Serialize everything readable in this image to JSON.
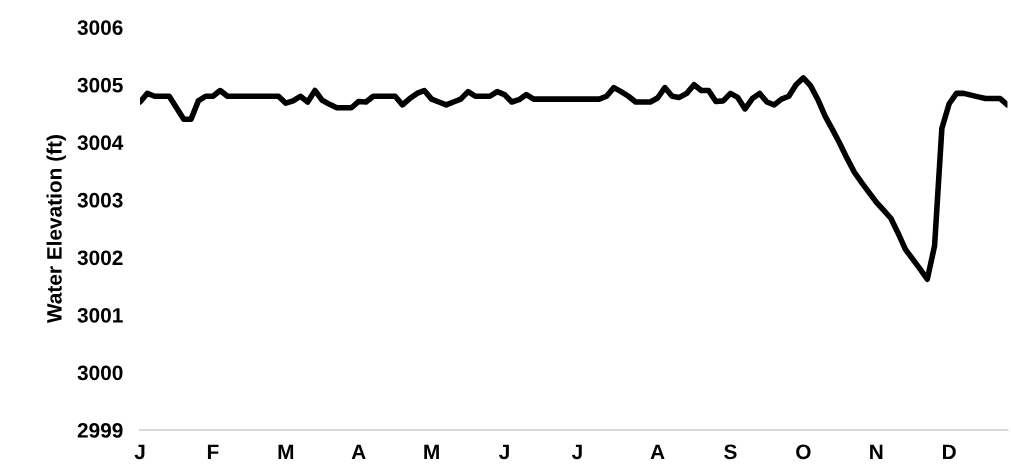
{
  "chart_data": {
    "type": "line",
    "ylabel": "Water Elevation (ft)",
    "categories": [
      "J",
      null,
      null,
      null,
      null,
      null,
      null,
      null,
      null,
      null,
      "F",
      null,
      null,
      null,
      null,
      null,
      null,
      null,
      null,
      null,
      "M",
      null,
      null,
      null,
      null,
      null,
      null,
      null,
      null,
      null,
      "A",
      null,
      null,
      null,
      null,
      null,
      null,
      null,
      null,
      null,
      "M",
      null,
      null,
      null,
      null,
      null,
      null,
      null,
      null,
      null,
      "J",
      null,
      null,
      null,
      null,
      null,
      null,
      null,
      null,
      null,
      "J",
      null,
      null,
      null,
      null,
      null,
      null,
      null,
      null,
      null,
      null,
      "A",
      null,
      null,
      null,
      null,
      null,
      null,
      null,
      null,
      null,
      "S",
      null,
      null,
      null,
      null,
      null,
      null,
      null,
      null,
      null,
      "O",
      null,
      null,
      null,
      null,
      null,
      null,
      null,
      null,
      null,
      "N",
      null,
      null,
      null,
      null,
      null,
      null,
      null,
      null,
      null,
      "D",
      null,
      null,
      null,
      null,
      null,
      null,
      null,
      null
    ],
    "series": [
      {
        "color": "#000000",
        "values": [
          3004.7,
          3004.85,
          3004.8,
          3004.8,
          3004.8,
          3004.6,
          3004.4,
          3004.4,
          3004.72,
          3004.8,
          3004.8,
          3004.9,
          3004.8,
          3004.8,
          3004.8,
          3004.8,
          3004.8,
          3004.8,
          3004.8,
          3004.8,
          3004.68,
          3004.72,
          3004.8,
          3004.7,
          3004.9,
          3004.73,
          3004.66,
          3004.6,
          3004.6,
          3004.6,
          3004.71,
          3004.7,
          3004.8,
          3004.8,
          3004.8,
          3004.8,
          3004.65,
          3004.76,
          3004.85,
          3004.9,
          3004.75,
          3004.7,
          3004.65,
          3004.7,
          3004.75,
          3004.88,
          3004.8,
          3004.8,
          3004.8,
          3004.88,
          3004.83,
          3004.7,
          3004.74,
          3004.83,
          3004.75,
          3004.75,
          3004.75,
          3004.75,
          3004.75,
          3004.75,
          3004.75,
          3004.75,
          3004.75,
          3004.75,
          3004.8,
          3004.95,
          3004.88,
          3004.8,
          3004.7,
          3004.7,
          3004.7,
          3004.77,
          3004.95,
          3004.8,
          3004.78,
          3004.85,
          3005.0,
          3004.9,
          3004.9,
          3004.71,
          3004.72,
          3004.85,
          3004.78,
          3004.58,
          3004.76,
          3004.85,
          3004.7,
          3004.65,
          3004.75,
          3004.8,
          3005.0,
          3005.12,
          3004.98,
          3004.74,
          3004.45,
          3004.22,
          3003.98,
          3003.72,
          3003.48,
          3003.3,
          3003.13,
          3002.96,
          3002.82,
          3002.68,
          3002.42,
          3002.14,
          3001.97,
          3001.8,
          3001.62,
          3002.2,
          3004.24,
          3004.67,
          3004.85,
          3004.85,
          3004.82,
          3004.79,
          3004.76,
          3004.76,
          3004.76,
          3004.65
        ]
      }
    ],
    "ylim": [
      2999,
      3006
    ],
    "yticks": [
      2999,
      3000,
      3001,
      3002,
      3003,
      3004,
      3005,
      3006
    ],
    "grid": false,
    "legend": false,
    "marker": "none",
    "line_style": "solid"
  }
}
